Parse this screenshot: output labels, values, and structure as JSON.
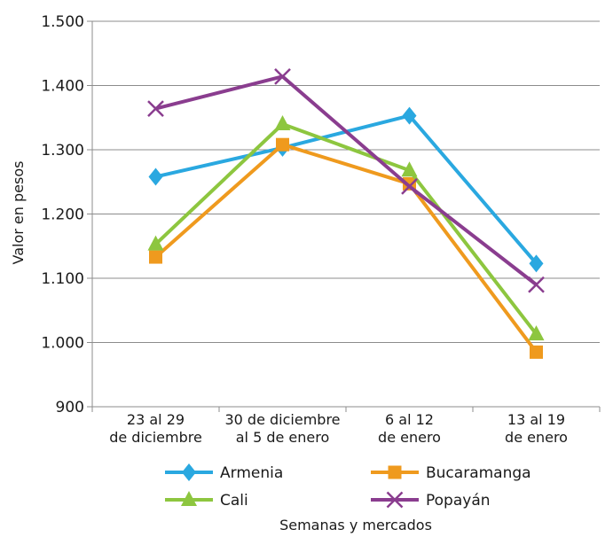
{
  "chart_data": {
    "type": "line",
    "title": "",
    "xlabel": "Semanas y mercados",
    "ylabel": "Valor en pesos",
    "ylim": [
      900,
      1500
    ],
    "yticks": [
      900,
      1000,
      1100,
      1200,
      1300,
      1400,
      1500
    ],
    "ytick_labels": [
      "900",
      "1.000",
      "1.100",
      "1.200",
      "1.300",
      "1.400",
      "1.500"
    ],
    "grid": "horizontal",
    "legend_position": "bottom",
    "categories": [
      [
        "23 al 29",
        "de diciembre"
      ],
      [
        "30 de diciembre",
        "al 5 de enero"
      ],
      [
        "6 al 12",
        "de enero"
      ],
      [
        "13 al 19",
        "de enero"
      ]
    ],
    "series": [
      {
        "name": "Armenia",
        "marker": "diamond",
        "color": "#2aa8e0",
        "values": [
          1258,
          1303,
          1353,
          1123
        ]
      },
      {
        "name": "Bucaramanga",
        "marker": "square",
        "color": "#ef9a1e",
        "values": [
          1133,
          1308,
          1247,
          985
        ]
      },
      {
        "name": "Cali",
        "marker": "triangle",
        "color": "#8dc63f",
        "values": [
          1153,
          1340,
          1268,
          1013
        ]
      },
      {
        "name": "Popayán",
        "marker": "x",
        "color": "#8a3d8f",
        "values": [
          1364,
          1414,
          1243,
          1090
        ]
      }
    ]
  }
}
